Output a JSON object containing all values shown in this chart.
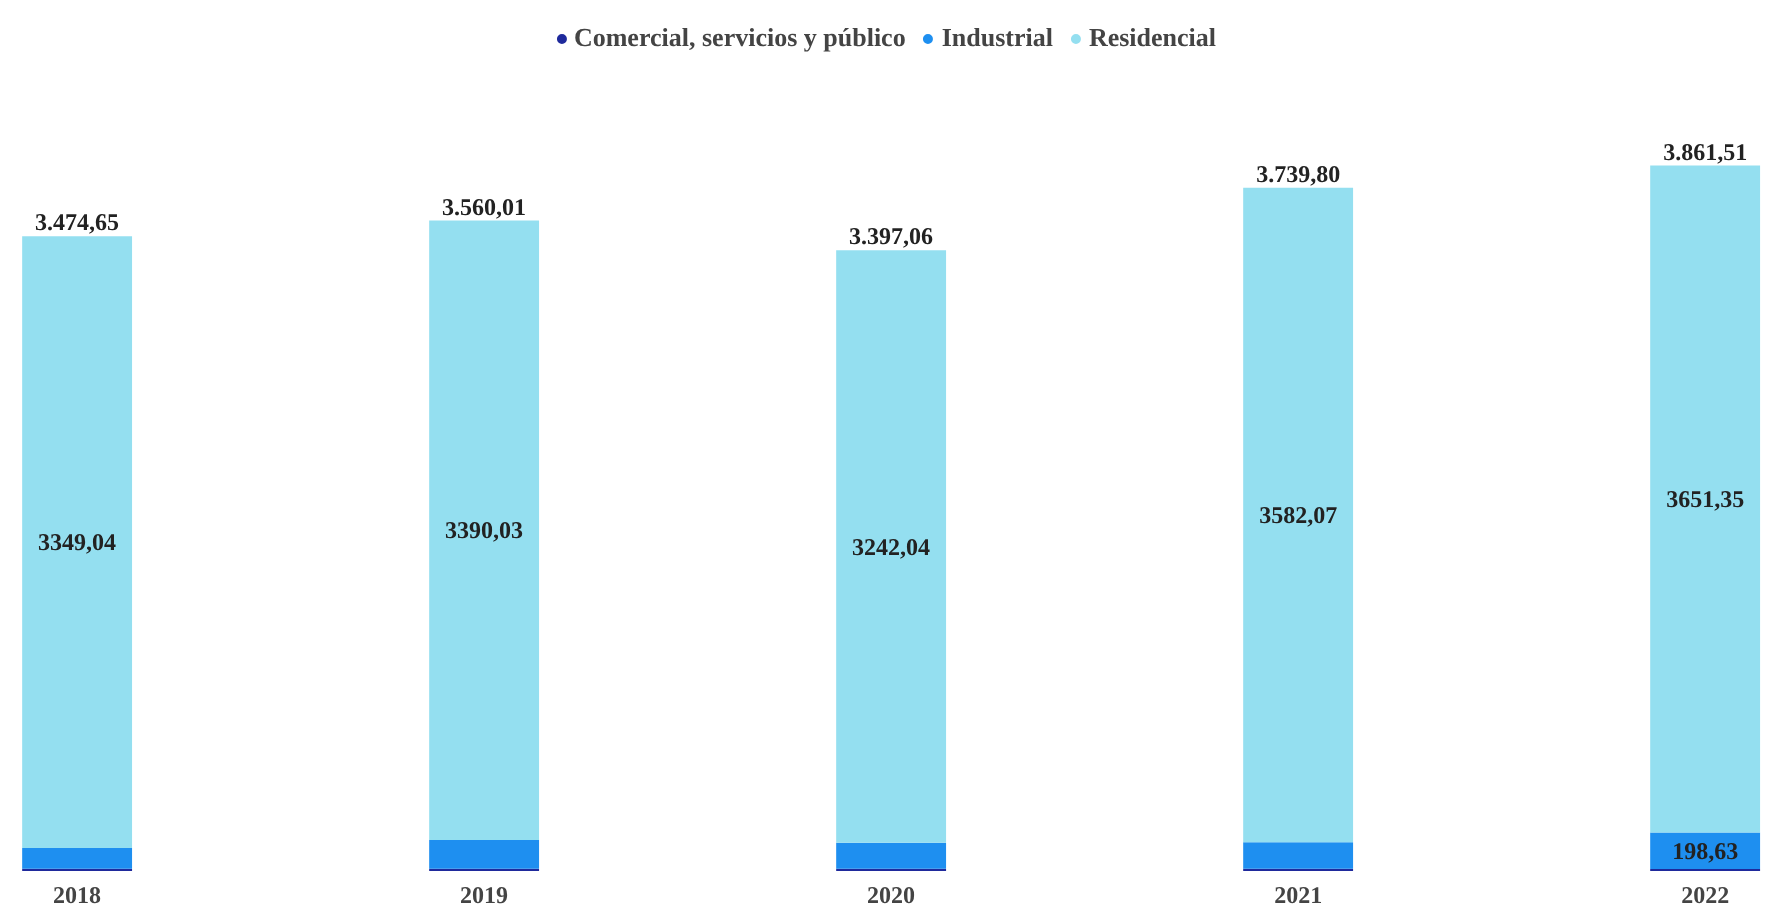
{
  "chart_data": {
    "type": "bar",
    "stacked": true,
    "categories": [
      "2018",
      "2019",
      "2020",
      "2021",
      "2022"
    ],
    "series": [
      {
        "name": "Comercial, servicios y público",
        "color": "#1f2a9c",
        "values": [
          12,
          12,
          12,
          12,
          11.53
        ]
      },
      {
        "name": "Industrial",
        "color": "#1e8ff0",
        "values": [
          113.61,
          157.98,
          143.02,
          145.73,
          198.63
        ],
        "value_labels": [
          null,
          null,
          null,
          null,
          "198,63"
        ]
      },
      {
        "name": "Residencial",
        "color": "#94dff0",
        "values": [
          3349.04,
          3390.03,
          3242.04,
          3582.07,
          3651.35
        ],
        "value_labels": [
          "3349,04",
          "3390,03",
          "3242,04",
          "3582,07",
          "3651,35"
        ]
      }
    ],
    "totals": [
      "3.474,65",
      "3.560,01",
      "3.397,06",
      "3.739,80",
      "3.861,51"
    ],
    "legend": "top",
    "marker": "circle",
    "grid": false
  }
}
